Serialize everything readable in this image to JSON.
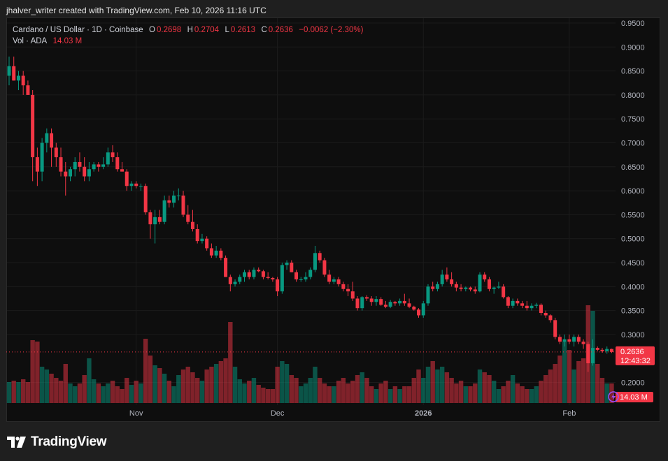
{
  "header": {
    "credit": "jhalver_writer created with TradingView.com, Feb 10, 2026 11:16 UTC"
  },
  "legend": {
    "symbol": "Cardano / US Dollar · 1D · Coinbase",
    "o_label": "O",
    "o_value": "0.2698",
    "h_label": "H",
    "h_value": "0.2704",
    "l_label": "L",
    "l_value": "0.2613",
    "c_label": "C",
    "c_value": "0.2636",
    "change": "−0.0062 (−2.30%)",
    "vol_label": "Vol · ADA",
    "vol_value": "14.03 M"
  },
  "price_tag": {
    "price": "0.2636",
    "countdown": "12:43:32"
  },
  "volume_tag": "14.03 M",
  "footer": {
    "logo_text": "TradingView"
  },
  "colors": {
    "up": "#089981",
    "down": "#f23645",
    "background": "#0e0e0e"
  },
  "chart_data": {
    "type": "candlestick",
    "title": "Cardano / US Dollar · 1D · Coinbase",
    "y_axis_side": "right",
    "ylim": [
      0.2,
      0.95
    ],
    "y_ticks": [
      "0.9500",
      "0.9000",
      "0.8500",
      "0.8000",
      "0.7500",
      "0.7000",
      "0.6500",
      "0.6000",
      "0.5500",
      "0.5000",
      "0.4500",
      "0.4000",
      "0.3500",
      "0.3000",
      "0.2000"
    ],
    "x_ticks": [
      {
        "label": "Nov",
        "date": "2025-11-01"
      },
      {
        "label": "Dec",
        "date": "2025-12-01"
      },
      {
        "label": "2026",
        "date": "2026-01-01"
      },
      {
        "label": "Feb",
        "date": "2026-02-01"
      }
    ],
    "grid": true,
    "volume_unit": "M",
    "columns": [
      "date",
      "open",
      "high",
      "low",
      "close",
      "volume"
    ],
    "candles": [
      [
        "2025-10-05",
        0.84,
        0.88,
        0.82,
        0.86,
        15
      ],
      [
        "2025-10-06",
        0.86,
        0.88,
        0.83,
        0.83,
        16
      ],
      [
        "2025-10-07",
        0.83,
        0.85,
        0.81,
        0.84,
        15
      ],
      [
        "2025-10-08",
        0.84,
        0.85,
        0.8,
        0.82,
        17
      ],
      [
        "2025-10-09",
        0.82,
        0.83,
        0.8,
        0.8,
        15
      ],
      [
        "2025-10-10",
        0.8,
        0.81,
        0.62,
        0.67,
        45
      ],
      [
        "2025-10-11",
        0.67,
        0.69,
        0.61,
        0.64,
        44
      ],
      [
        "2025-10-12",
        0.64,
        0.71,
        0.62,
        0.7,
        26
      ],
      [
        "2025-10-13",
        0.7,
        0.73,
        0.68,
        0.72,
        24
      ],
      [
        "2025-10-14",
        0.72,
        0.73,
        0.65,
        0.69,
        21
      ],
      [
        "2025-10-15",
        0.69,
        0.7,
        0.65,
        0.67,
        18
      ],
      [
        "2025-10-16",
        0.67,
        0.69,
        0.63,
        0.64,
        16
      ],
      [
        "2025-10-17",
        0.64,
        0.66,
        0.59,
        0.63,
        28
      ],
      [
        "2025-10-18",
        0.63,
        0.65,
        0.62,
        0.645,
        14
      ],
      [
        "2025-10-19",
        0.645,
        0.67,
        0.63,
        0.66,
        12
      ],
      [
        "2025-10-20",
        0.66,
        0.68,
        0.64,
        0.65,
        14
      ],
      [
        "2025-10-21",
        0.65,
        0.67,
        0.62,
        0.63,
        20
      ],
      [
        "2025-10-22",
        0.63,
        0.66,
        0.62,
        0.645,
        32
      ],
      [
        "2025-10-23",
        0.645,
        0.66,
        0.64,
        0.655,
        17
      ],
      [
        "2025-10-24",
        0.655,
        0.66,
        0.64,
        0.65,
        14
      ],
      [
        "2025-10-25",
        0.65,
        0.67,
        0.645,
        0.655,
        12
      ],
      [
        "2025-10-26",
        0.655,
        0.69,
        0.65,
        0.68,
        14
      ],
      [
        "2025-10-27",
        0.68,
        0.695,
        0.66,
        0.67,
        16
      ],
      [
        "2025-10-28",
        0.67,
        0.68,
        0.64,
        0.645,
        12
      ],
      [
        "2025-10-29",
        0.645,
        0.66,
        0.64,
        0.64,
        10
      ],
      [
        "2025-10-30",
        0.64,
        0.645,
        0.6,
        0.61,
        18
      ],
      [
        "2025-10-31",
        0.61,
        0.62,
        0.6,
        0.615,
        13
      ],
      [
        "2025-11-01",
        0.615,
        0.62,
        0.605,
        0.61,
        16
      ],
      [
        "2025-11-02",
        0.61,
        0.615,
        0.6,
        0.61,
        14
      ],
      [
        "2025-11-03",
        0.61,
        0.615,
        0.55,
        0.555,
        46
      ],
      [
        "2025-11-04",
        0.555,
        0.56,
        0.5,
        0.53,
        34
      ],
      [
        "2025-11-05",
        0.53,
        0.56,
        0.49,
        0.545,
        27
      ],
      [
        "2025-11-06",
        0.545,
        0.56,
        0.53,
        0.535,
        25
      ],
      [
        "2025-11-07",
        0.535,
        0.59,
        0.53,
        0.58,
        21
      ],
      [
        "2025-11-08",
        0.58,
        0.59,
        0.565,
        0.575,
        16
      ],
      [
        "2025-11-09",
        0.575,
        0.6,
        0.565,
        0.59,
        12
      ],
      [
        "2025-11-10",
        0.59,
        0.605,
        0.58,
        0.59,
        20
      ],
      [
        "2025-11-11",
        0.59,
        0.6,
        0.545,
        0.55,
        24
      ],
      [
        "2025-11-12",
        0.55,
        0.57,
        0.53,
        0.535,
        26
      ],
      [
        "2025-11-13",
        0.535,
        0.56,
        0.515,
        0.52,
        22
      ],
      [
        "2025-11-14",
        0.52,
        0.53,
        0.49,
        0.495,
        18
      ],
      [
        "2025-11-15",
        0.495,
        0.51,
        0.49,
        0.5,
        16
      ],
      [
        "2025-11-16",
        0.5,
        0.505,
        0.475,
        0.48,
        24
      ],
      [
        "2025-11-17",
        0.48,
        0.49,
        0.46,
        0.465,
        26
      ],
      [
        "2025-11-18",
        0.465,
        0.485,
        0.46,
        0.475,
        28
      ],
      [
        "2025-11-19",
        0.475,
        0.48,
        0.455,
        0.46,
        30
      ],
      [
        "2025-11-20",
        0.46,
        0.465,
        0.42,
        0.42,
        32
      ],
      [
        "2025-11-21",
        0.42,
        0.425,
        0.39,
        0.405,
        58
      ],
      [
        "2025-11-22",
        0.405,
        0.415,
        0.4,
        0.41,
        26
      ],
      [
        "2025-11-23",
        0.41,
        0.425,
        0.405,
        0.42,
        17
      ],
      [
        "2025-11-24",
        0.42,
        0.435,
        0.41,
        0.43,
        14
      ],
      [
        "2025-11-25",
        0.43,
        0.435,
        0.415,
        0.42,
        16
      ],
      [
        "2025-11-26",
        0.42,
        0.44,
        0.415,
        0.435,
        18
      ],
      [
        "2025-11-27",
        0.435,
        0.44,
        0.43,
        0.432,
        13
      ],
      [
        "2025-11-28",
        0.432,
        0.435,
        0.415,
        0.42,
        11
      ],
      [
        "2025-11-29",
        0.42,
        0.43,
        0.415,
        0.418,
        10
      ],
      [
        "2025-11-30",
        0.418,
        0.42,
        0.41,
        0.415,
        10
      ],
      [
        "2025-12-01",
        0.415,
        0.42,
        0.38,
        0.39,
        26
      ],
      [
        "2025-12-02",
        0.39,
        0.45,
        0.385,
        0.445,
        30
      ],
      [
        "2025-12-03",
        0.445,
        0.455,
        0.435,
        0.45,
        28
      ],
      [
        "2025-12-04",
        0.45,
        0.455,
        0.43,
        0.43,
        20
      ],
      [
        "2025-12-05",
        0.43,
        0.435,
        0.41,
        0.415,
        18
      ],
      [
        "2025-12-06",
        0.415,
        0.42,
        0.41,
        0.415,
        12
      ],
      [
        "2025-12-07",
        0.415,
        0.43,
        0.41,
        0.42,
        14
      ],
      [
        "2025-12-08",
        0.42,
        0.44,
        0.415,
        0.435,
        18
      ],
      [
        "2025-12-09",
        0.435,
        0.485,
        0.43,
        0.47,
        26
      ],
      [
        "2025-12-10",
        0.47,
        0.475,
        0.45,
        0.455,
        18
      ],
      [
        "2025-12-11",
        0.455,
        0.46,
        0.42,
        0.425,
        14
      ],
      [
        "2025-12-12",
        0.425,
        0.435,
        0.405,
        0.41,
        12
      ],
      [
        "2025-12-13",
        0.41,
        0.42,
        0.405,
        0.415,
        12
      ],
      [
        "2025-12-14",
        0.415,
        0.42,
        0.4,
        0.405,
        16
      ],
      [
        "2025-12-15",
        0.405,
        0.41,
        0.39,
        0.395,
        18
      ],
      [
        "2025-12-16",
        0.395,
        0.405,
        0.38,
        0.39,
        14
      ],
      [
        "2025-12-17",
        0.39,
        0.41,
        0.37,
        0.375,
        16
      ],
      [
        "2025-12-18",
        0.375,
        0.38,
        0.35,
        0.355,
        20
      ],
      [
        "2025-12-19",
        0.355,
        0.38,
        0.35,
        0.378,
        22
      ],
      [
        "2025-12-20",
        0.378,
        0.382,
        0.37,
        0.375,
        18
      ],
      [
        "2025-12-21",
        0.375,
        0.38,
        0.36,
        0.368,
        12
      ],
      [
        "2025-12-22",
        0.368,
        0.38,
        0.36,
        0.374,
        10
      ],
      [
        "2025-12-23",
        0.374,
        0.378,
        0.36,
        0.362,
        14
      ],
      [
        "2025-12-24",
        0.362,
        0.37,
        0.355,
        0.358,
        16
      ],
      [
        "2025-12-25",
        0.358,
        0.372,
        0.355,
        0.368,
        10
      ],
      [
        "2025-12-26",
        0.368,
        0.37,
        0.36,
        0.365,
        12
      ],
      [
        "2025-12-27",
        0.365,
        0.375,
        0.36,
        0.37,
        10
      ],
      [
        "2025-12-28",
        0.37,
        0.385,
        0.36,
        0.365,
        12
      ],
      [
        "2025-12-29",
        0.365,
        0.375,
        0.355,
        0.358,
        12
      ],
      [
        "2025-12-30",
        0.358,
        0.36,
        0.35,
        0.352,
        18
      ],
      [
        "2025-12-31",
        0.352,
        0.355,
        0.335,
        0.34,
        24
      ],
      [
        "2026-01-01",
        0.34,
        0.37,
        0.335,
        0.365,
        18
      ],
      [
        "2026-01-02",
        0.365,
        0.405,
        0.36,
        0.4,
        26
      ],
      [
        "2026-01-03",
        0.4,
        0.41,
        0.39,
        0.395,
        30
      ],
      [
        "2026-01-04",
        0.395,
        0.41,
        0.39,
        0.405,
        24
      ],
      [
        "2026-01-05",
        0.405,
        0.435,
        0.4,
        0.425,
        26
      ],
      [
        "2026-01-06",
        0.425,
        0.44,
        0.41,
        0.415,
        22
      ],
      [
        "2026-01-07",
        0.415,
        0.43,
        0.4,
        0.405,
        18
      ],
      [
        "2026-01-08",
        0.405,
        0.41,
        0.39,
        0.398,
        14
      ],
      [
        "2026-01-09",
        0.398,
        0.405,
        0.39,
        0.395,
        16
      ],
      [
        "2026-01-10",
        0.395,
        0.4,
        0.39,
        0.398,
        12
      ],
      [
        "2026-01-11",
        0.398,
        0.4,
        0.39,
        0.394,
        12
      ],
      [
        "2026-01-12",
        0.394,
        0.4,
        0.385,
        0.39,
        14
      ],
      [
        "2026-01-13",
        0.39,
        0.43,
        0.388,
        0.425,
        24
      ],
      [
        "2026-01-14",
        0.425,
        0.43,
        0.41,
        0.415,
        22
      ],
      [
        "2026-01-15",
        0.415,
        0.42,
        0.39,
        0.395,
        20
      ],
      [
        "2026-01-16",
        0.395,
        0.4,
        0.385,
        0.398,
        16
      ],
      [
        "2026-01-17",
        0.398,
        0.41,
        0.395,
        0.4,
        10
      ],
      [
        "2026-01-18",
        0.4,
        0.405,
        0.375,
        0.378,
        12
      ],
      [
        "2026-01-19",
        0.378,
        0.38,
        0.355,
        0.36,
        16
      ],
      [
        "2026-01-20",
        0.36,
        0.375,
        0.355,
        0.37,
        20
      ],
      [
        "2026-01-21",
        0.37,
        0.375,
        0.36,
        0.365,
        14
      ],
      [
        "2026-01-22",
        0.365,
        0.37,
        0.355,
        0.36,
        12
      ],
      [
        "2026-01-23",
        0.36,
        0.37,
        0.35,
        0.355,
        10
      ],
      [
        "2026-01-24",
        0.355,
        0.365,
        0.35,
        0.36,
        10
      ],
      [
        "2026-01-25",
        0.36,
        0.366,
        0.355,
        0.362,
        12
      ],
      [
        "2026-01-26",
        0.362,
        0.365,
        0.34,
        0.345,
        16
      ],
      [
        "2026-01-27",
        0.345,
        0.35,
        0.335,
        0.34,
        20
      ],
      [
        "2026-01-28",
        0.34,
        0.342,
        0.325,
        0.33,
        24
      ],
      [
        "2026-01-29",
        0.33,
        0.335,
        0.29,
        0.295,
        28
      ],
      [
        "2026-01-30",
        0.295,
        0.3,
        0.28,
        0.285,
        34
      ],
      [
        "2026-01-31",
        0.285,
        0.3,
        0.275,
        0.29,
        44
      ],
      [
        "2026-02-01",
        0.29,
        0.3,
        0.28,
        0.285,
        38
      ],
      [
        "2026-02-02",
        0.285,
        0.3,
        0.275,
        0.295,
        24
      ],
      [
        "2026-02-03",
        0.295,
        0.3,
        0.28,
        0.285,
        30
      ],
      [
        "2026-02-04",
        0.285,
        0.29,
        0.27,
        0.28,
        32
      ],
      [
        "2026-02-05",
        0.28,
        0.285,
        0.222,
        0.24,
        70
      ],
      [
        "2026-02-06",
        0.24,
        0.29,
        0.235,
        0.272,
        66
      ],
      [
        "2026-02-07",
        0.272,
        0.275,
        0.265,
        0.268,
        28
      ],
      [
        "2026-02-08",
        0.268,
        0.272,
        0.262,
        0.265,
        18
      ],
      [
        "2026-02-09",
        0.265,
        0.275,
        0.26,
        0.2698,
        14
      ],
      [
        "2026-02-10",
        0.2698,
        0.2704,
        0.2613,
        0.2636,
        14.03
      ]
    ]
  }
}
